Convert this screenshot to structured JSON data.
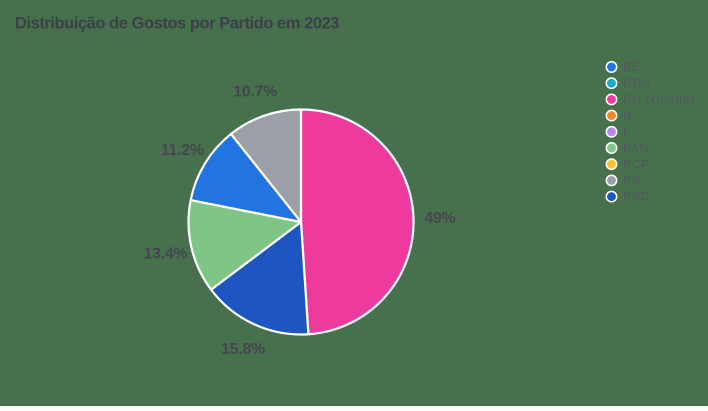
{
  "background_color": "#47704D",
  "colors": {
    "title_text": "#3B4049",
    "slice_label_text": "#43474E",
    "legend_text": "#52575F",
    "slice_border": "#FFFFFF"
  },
  "chart_data": {
    "type": "pie",
    "title": "Distribuição de Gostos por Partido em 2023",
    "legend_position": "right",
    "sort": "descending-clockwise-from-top",
    "series": [
      {
        "name": "BE",
        "value": 11.2,
        "label": "11.2%",
        "color": "#2274E0"
      },
      {
        "name": "CDS",
        "value": 0,
        "label": "",
        "color": "#1FA9C9"
      },
      {
        "name": "CH (Chega)",
        "value": 49,
        "label": "49%",
        "color": "#EF3A9D"
      },
      {
        "name": "IL",
        "value": 0,
        "label": "",
        "color": "#F0862D"
      },
      {
        "name": "L",
        "value": 0,
        "label": "",
        "color": "#B985EC"
      },
      {
        "name": "PAN",
        "value": 13.4,
        "label": "13.4%",
        "color": "#7EC586"
      },
      {
        "name": "PCP",
        "value": 0,
        "label": "",
        "color": "#F8C32D"
      },
      {
        "name": "PS",
        "value": 10.7,
        "label": "10.7%",
        "color": "#9CA0A6"
      },
      {
        "name": "PSD",
        "value": 15.8,
        "label": "15.8%",
        "color": "#1D56C0"
      }
    ]
  }
}
